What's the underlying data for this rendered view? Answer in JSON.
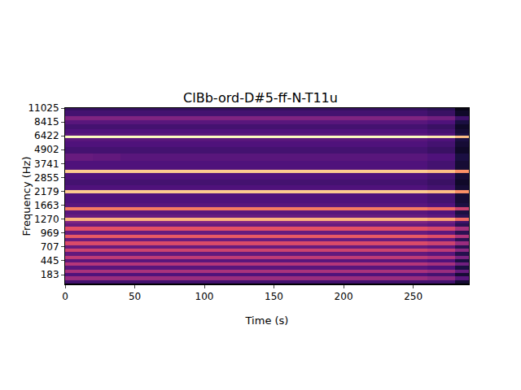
{
  "chart_data": {
    "type": "heatmap",
    "title": "ClBb-ord-D#5-ff-N-T11u",
    "x_label": "Time (s)",
    "y_label": "Frequency (Hz)",
    "xlim": [
      0,
      290
    ],
    "xticks": [
      0,
      50,
      100,
      150,
      200,
      250
    ],
    "ylim": [
      0,
      11025
    ],
    "yticks": [
      183,
      445,
      707,
      969,
      1270,
      1663,
      2179,
      2855,
      3741,
      4902,
      6422,
      8415,
      11025
    ],
    "zlim": [
      -80,
      0
    ],
    "x": [
      10,
      30,
      50,
      70,
      90,
      110,
      130,
      150,
      170,
      190,
      210,
      230,
      250,
      270,
      290
    ],
    "y": [
      50,
      120,
      183,
      250,
      320,
      390,
      445,
      510,
      580,
      650,
      707,
      780,
      850,
      900,
      969,
      1050,
      1130,
      1200,
      1270,
      1350,
      1450,
      1550,
      1663,
      1800,
      1950,
      2050,
      2179,
      2300,
      2600,
      2855,
      3000,
      3200,
      3400,
      3741,
      4200,
      4902,
      5500,
      6000,
      6300,
      6600,
      7000,
      7700,
      8415,
      9000,
      10000,
      11025
    ],
    "z": [
      [
        -62,
        -62,
        -62,
        -62,
        -62,
        -62,
        -62,
        -62,
        -62,
        -62,
        -62,
        -62,
        -62,
        -62,
        -72
      ],
      [
        -45,
        -45,
        -45,
        -45,
        -45,
        -45,
        -45,
        -45,
        -45,
        -45,
        -45,
        -45,
        -45,
        -48,
        -58
      ],
      [
        -60,
        -60,
        -60,
        -60,
        -60,
        -60,
        -60,
        -60,
        -60,
        -60,
        -60,
        -60,
        -60,
        -62,
        -72
      ],
      [
        -42,
        -42,
        -42,
        -42,
        -42,
        -42,
        -42,
        -42,
        -42,
        -42,
        -42,
        -42,
        -42,
        -45,
        -55
      ],
      [
        -58,
        -58,
        -58,
        -58,
        -58,
        -58,
        -58,
        -58,
        -58,
        -58,
        -58,
        -58,
        -58,
        -60,
        -70
      ],
      [
        -40,
        -40,
        -40,
        -40,
        -40,
        -40,
        -40,
        -40,
        -40,
        -40,
        -40,
        -40,
        -40,
        -43,
        -53
      ],
      [
        -58,
        -58,
        -58,
        -58,
        -58,
        -58,
        -58,
        -58,
        -58,
        -58,
        -58,
        -58,
        -58,
        -60,
        -70
      ],
      [
        -38,
        -38,
        -38,
        -38,
        -38,
        -38,
        -38,
        -38,
        -38,
        -38,
        -38,
        -38,
        -38,
        -41,
        -51
      ],
      [
        -56,
        -56,
        -56,
        -56,
        -56,
        -56,
        -56,
        -56,
        -56,
        -56,
        -56,
        -56,
        -56,
        -58,
        -68
      ],
      [
        -35,
        -35,
        -35,
        -35,
        -35,
        -35,
        -35,
        -35,
        -35,
        -35,
        -35,
        -35,
        -35,
        -38,
        -48
      ],
      [
        -55,
        -55,
        -55,
        -55,
        -55,
        -55,
        -55,
        -55,
        -55,
        -55,
        -55,
        -55,
        -55,
        -57,
        -67
      ],
      [
        -32,
        -32,
        -32,
        -32,
        -32,
        -32,
        -32,
        -32,
        -32,
        -32,
        -32,
        -32,
        -32,
        -35,
        -45
      ],
      [
        -55,
        -55,
        -55,
        -55,
        -55,
        -55,
        -55,
        -55,
        -55,
        -55,
        -55,
        -55,
        -55,
        -57,
        -67
      ],
      [
        -28,
        -28,
        -28,
        -28,
        -28,
        -28,
        -28,
        -28,
        -28,
        -28,
        -28,
        -28,
        -28,
        -31,
        -41
      ],
      [
        -55,
        -55,
        -55,
        -55,
        -55,
        -55,
        -55,
        -55,
        -55,
        -55,
        -55,
        -55,
        -55,
        -57,
        -67
      ],
      [
        -30,
        -30,
        -30,
        -30,
        -30,
        -30,
        -30,
        -30,
        -30,
        -30,
        -30,
        -30,
        -30,
        -33,
        -43
      ],
      [
        -55,
        -55,
        -55,
        -55,
        -55,
        -55,
        -55,
        -55,
        -55,
        -55,
        -55,
        -55,
        -55,
        -57,
        -67
      ],
      [
        -50,
        -50,
        -50,
        -50,
        -50,
        -50,
        -50,
        -50,
        -50,
        -50,
        -50,
        -50,
        -50,
        -53,
        -63
      ],
      [
        -12,
        -12,
        -12,
        -12,
        -12,
        -12,
        -12,
        -12,
        -12,
        -12,
        -12,
        -12,
        -12,
        -15,
        -25
      ],
      [
        -55,
        -55,
        -55,
        -55,
        -55,
        -55,
        -55,
        -55,
        -55,
        -55,
        -55,
        -55,
        -55,
        -57,
        -67
      ],
      [
        -58,
        -58,
        -58,
        -58,
        -58,
        -58,
        -58,
        -58,
        -58,
        -58,
        -58,
        -58,
        -58,
        -60,
        -70
      ],
      [
        -22,
        -22,
        -22,
        -22,
        -22,
        -22,
        -22,
        -22,
        -22,
        -22,
        -22,
        -22,
        -22,
        -25,
        -35
      ],
      [
        -58,
        -58,
        -58,
        -58,
        -58,
        -58,
        -58,
        -58,
        -58,
        -58,
        -58,
        -58,
        -58,
        -60,
        -70
      ],
      [
        -60,
        -60,
        -60,
        -60,
        -60,
        -60,
        -60,
        -60,
        -60,
        -60,
        -60,
        -60,
        -60,
        -62,
        -72
      ],
      [
        -60,
        -60,
        -60,
        -60,
        -60,
        -60,
        -60,
        -60,
        -60,
        -60,
        -60,
        -60,
        -60,
        -62,
        -72
      ],
      [
        -60,
        -60,
        -60,
        -60,
        -60,
        -60,
        -60,
        -60,
        -60,
        -60,
        -60,
        -60,
        -60,
        -62,
        -72
      ],
      [
        -8,
        -8,
        -8,
        -8,
        -8,
        -8,
        -8,
        -8,
        -8,
        -8,
        -8,
        -8,
        -8,
        -10,
        -18
      ],
      [
        -60,
        -60,
        -60,
        -60,
        -60,
        -60,
        -60,
        -60,
        -60,
        -60,
        -60,
        -60,
        -60,
        -62,
        -72
      ],
      [
        -62,
        -62,
        -62,
        -62,
        -62,
        -62,
        -62,
        -62,
        -62,
        -62,
        -62,
        -62,
        -62,
        -64,
        -74
      ],
      [
        -60,
        -60,
        -60,
        -60,
        -60,
        -60,
        -60,
        -60,
        -60,
        -60,
        -60,
        -60,
        -60,
        -62,
        -72
      ],
      [
        -60,
        -60,
        -60,
        -60,
        -60,
        -60,
        -60,
        -60,
        -60,
        -60,
        -60,
        -60,
        -60,
        -62,
        -72
      ],
      [
        -8,
        -8,
        -8,
        -8,
        -8,
        -8,
        -8,
        -8,
        -8,
        -8,
        -8,
        -8,
        -8,
        -10,
        -18
      ],
      [
        -60,
        -60,
        -60,
        -60,
        -60,
        -60,
        -60,
        -60,
        -60,
        -60,
        -60,
        -60,
        -60,
        -62,
        -72
      ],
      [
        -60,
        -60,
        -60,
        -60,
        -60,
        -60,
        -60,
        -60,
        -60,
        -60,
        -60,
        -60,
        -60,
        -62,
        -72
      ],
      [
        -55,
        -56,
        -58,
        -58,
        -58,
        -58,
        -58,
        -58,
        -58,
        -58,
        -58,
        -58,
        -58,
        -60,
        -70
      ],
      [
        -62,
        -62,
        -62,
        -62,
        -62,
        -62,
        -62,
        -62,
        -62,
        -62,
        -62,
        -62,
        -62,
        -64,
        -74
      ],
      [
        -60,
        -60,
        -60,
        -60,
        -60,
        -60,
        -60,
        -60,
        -60,
        -60,
        -60,
        -60,
        -60,
        -62,
        -72
      ],
      [
        -58,
        -58,
        -58,
        -58,
        -58,
        -58,
        -58,
        -58,
        -58,
        -58,
        -58,
        -58,
        -58,
        -60,
        -70
      ],
      [
        0,
        0,
        0,
        0,
        0,
        0,
        0,
        0,
        0,
        0,
        0,
        0,
        0,
        -3,
        -10
      ],
      [
        -58,
        -58,
        -58,
        -58,
        -58,
        -58,
        -58,
        -58,
        -58,
        -58,
        -58,
        -58,
        -58,
        -60,
        -70
      ],
      [
        -60,
        -60,
        -60,
        -60,
        -60,
        -60,
        -60,
        -60,
        -60,
        -60,
        -60,
        -60,
        -60,
        -62,
        -72
      ],
      [
        -62,
        -62,
        -62,
        -62,
        -62,
        -62,
        -62,
        -62,
        -62,
        -62,
        -62,
        -62,
        -62,
        -64,
        -74
      ],
      [
        -58,
        -58,
        -58,
        -58,
        -58,
        -58,
        -58,
        -58,
        -58,
        -58,
        -58,
        -58,
        -58,
        -60,
        -70
      ],
      [
        -50,
        -50,
        -50,
        -50,
        -50,
        -50,
        -50,
        -50,
        -50,
        -50,
        -50,
        -50,
        -50,
        -53,
        -63
      ],
      [
        -62,
        -62,
        -62,
        -62,
        -62,
        -62,
        -62,
        -62,
        -62,
        -62,
        -62,
        -62,
        -62,
        -64,
        -74
      ],
      [
        -65,
        -65,
        -65,
        -65,
        -65,
        -65,
        -65,
        -65,
        -65,
        -65,
        -65,
        -65,
        -65,
        -67,
        -77
      ]
    ]
  }
}
